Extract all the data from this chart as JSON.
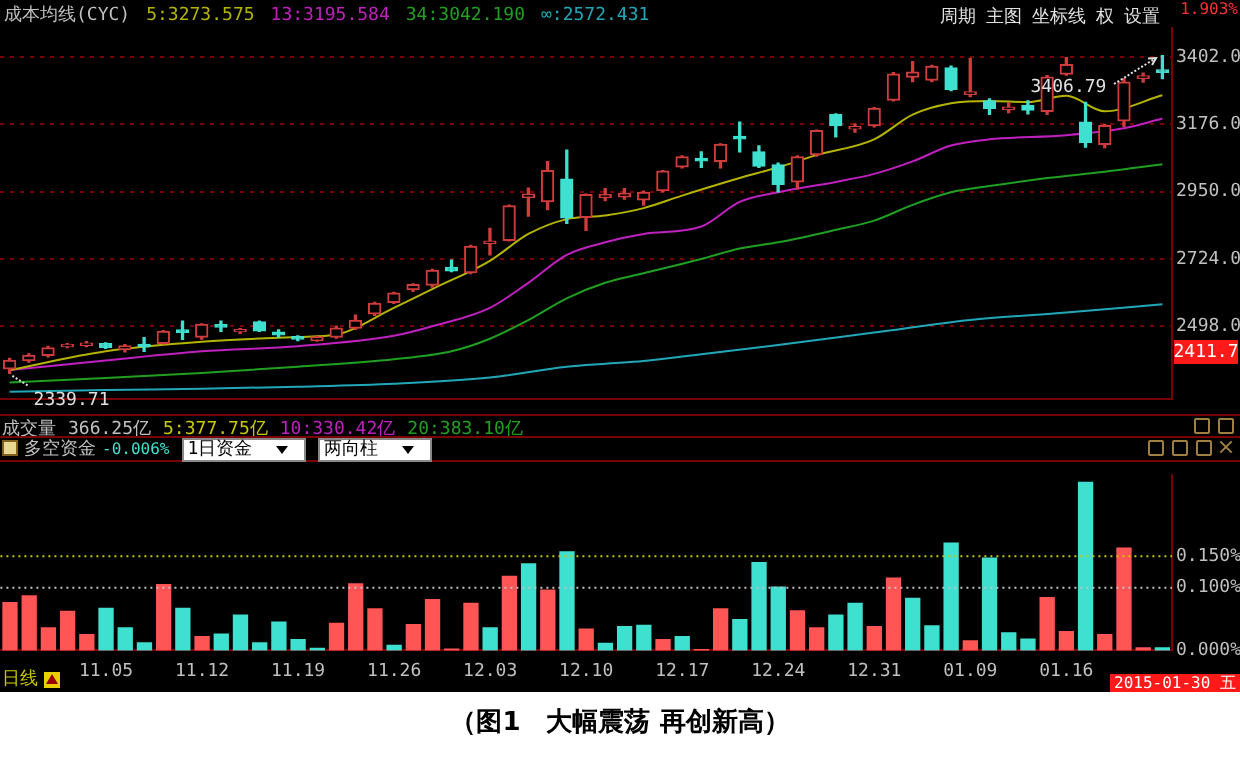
{
  "chart_data": [
    {
      "type": "candlestick",
      "title": "成本均线(CYC)",
      "legend": "top left",
      "tick_labels": "y",
      "grid": "y",
      "categories": [
        null,
        null,
        null,
        null,
        null,
        "11.05",
        null,
        null,
        null,
        null,
        "11.12",
        null,
        null,
        null,
        null,
        "11.19",
        null,
        null,
        null,
        null,
        "11.26",
        null,
        null,
        null,
        null,
        "12.03",
        null,
        null,
        null,
        null,
        "12.10",
        null,
        null,
        null,
        null,
        "12.17",
        null,
        null,
        null,
        null,
        "12.24",
        null,
        null,
        null,
        null,
        "12.31",
        null,
        null,
        null,
        null,
        "01.09",
        null,
        null,
        null,
        null,
        "01.16",
        null,
        null,
        null,
        null,
        null
      ],
      "ohlc": [
        [
          2355,
          2390,
          2339.71,
          2383
        ],
        [
          2383,
          2405,
          2378,
          2400
        ],
        [
          2400,
          2430,
          2395,
          2425
        ],
        [
          2430,
          2440,
          2426,
          2437
        ],
        [
          2434,
          2446,
          2430,
          2441
        ],
        [
          2440,
          2442,
          2424,
          2427
        ],
        [
          2420,
          2436,
          2412,
          2432
        ],
        [
          2437,
          2460,
          2414,
          2429
        ],
        [
          2441,
          2483,
          2439,
          2481
        ],
        [
          2486,
          2515,
          2454,
          2478
        ],
        [
          2462,
          2506,
          2455,
          2504
        ],
        [
          2503,
          2515,
          2481,
          2495
        ],
        [
          2480,
          2490,
          2474,
          2487
        ],
        [
          2513,
          2515,
          2481,
          2483
        ],
        [
          2478,
          2486,
          2462,
          2469
        ],
        [
          2463,
          2466,
          2450,
          2455
        ],
        [
          2450,
          2464,
          2448,
          2462
        ],
        [
          2462,
          2498,
          2458,
          2492
        ],
        [
          2492,
          2535,
          2488,
          2518
        ],
        [
          2540,
          2578,
          2535,
          2575
        ],
        [
          2578,
          2612,
          2575,
          2609
        ],
        [
          2621,
          2640,
          2615,
          2638
        ],
        [
          2636,
          2689,
          2630,
          2686
        ],
        [
          2696,
          2720,
          2682,
          2684
        ],
        [
          2678,
          2770,
          2675,
          2766
        ],
        [
          2776,
          2827,
          2738,
          2784
        ],
        [
          2787,
          2905,
          2785,
          2902
        ],
        [
          2931,
          2962,
          2868,
          2942
        ],
        [
          2917,
          3051,
          2890,
          3021
        ],
        [
          2992,
          3090,
          2844,
          2862
        ],
        [
          2864,
          2942,
          2820,
          2940
        ],
        [
          2930,
          2960,
          2920,
          2940
        ],
        [
          2933,
          2960,
          2925,
          2944
        ],
        [
          2923,
          2952,
          2905,
          2948
        ],
        [
          2954,
          3021,
          2950,
          3019
        ],
        [
          3034,
          3070,
          3030,
          3067
        ],
        [
          3062,
          3084,
          3032,
          3054
        ],
        [
          3052,
          3111,
          3030,
          3109
        ],
        [
          3136,
          3184,
          3084,
          3128
        ],
        [
          3084,
          3104,
          3032,
          3036
        ],
        [
          3040,
          3046,
          2950,
          2975
        ],
        [
          2983,
          3070,
          2960,
          3067
        ],
        [
          3075,
          3157,
          3070,
          3155
        ],
        [
          3209,
          3211,
          3134,
          3172
        ],
        [
          3161,
          3178,
          3150,
          3169
        ],
        [
          3172,
          3232,
          3168,
          3230
        ],
        [
          3258,
          3350,
          3255,
          3345
        ],
        [
          3335,
          3387,
          3320,
          3352
        ],
        [
          3325,
          3374,
          3320,
          3371
        ],
        [
          3366,
          3372,
          3290,
          3293
        ],
        [
          3277,
          3398,
          3270,
          3285
        ],
        [
          3255,
          3262,
          3210,
          3230
        ],
        [
          3226,
          3248,
          3216,
          3234
        ],
        [
          3240,
          3255,
          3212,
          3224
        ],
        [
          3220,
          3340,
          3210,
          3335
        ],
        [
          3345,
          3400,
          3342,
          3377
        ],
        [
          3184,
          3250,
          3100,
          3115
        ],
        [
          3109,
          3176,
          3098,
          3172
        ],
        [
          3188,
          3330,
          3170,
          3318
        ],
        [
          3331,
          3348,
          3318,
          3339
        ],
        [
          3359,
          3406.79,
          3330,
          3351
        ]
      ],
      "colors": [
        "#d03c3c",
        "#d03c3c",
        "#d03c3c",
        "#d03c3c",
        "#d03c3c",
        "#40e0d0",
        "#d03c3c",
        "#40e0d0",
        "#d03c3c",
        "#40e0d0",
        "#d03c3c",
        "#40e0d0",
        "#d03c3c",
        "#40e0d0",
        "#40e0d0",
        "#40e0d0",
        "#d03c3c",
        "#d03c3c",
        "#d03c3c",
        "#d03c3c",
        "#d03c3c",
        "#d03c3c",
        "#d03c3c",
        "#40e0d0",
        "#d03c3c",
        "#d03c3c",
        "#d03c3c",
        "#d03c3c",
        "#d03c3c",
        "#40e0d0",
        "#d03c3c",
        "#d03c3c",
        "#d03c3c",
        "#d03c3c",
        "#d03c3c",
        "#d03c3c",
        "#40e0d0",
        "#d03c3c",
        "#40e0d0",
        "#40e0d0",
        "#40e0d0",
        "#d03c3c",
        "#d03c3c",
        "#40e0d0",
        "#d03c3c",
        "#d03c3c",
        "#d03c3c",
        "#d03c3c",
        "#d03c3c",
        "#40e0d0",
        "#d03c3c",
        "#40e0d0",
        "#d03c3c",
        "#40e0d0",
        "#d03c3c",
        "#d03c3c",
        "#40e0d0",
        "#d03c3c",
        "#d03c3c",
        "#d03c3c",
        "#40e0d0"
      ],
      "series": [
        {
          "name": "5:3273.575",
          "type": "line",
          "color": "#b4b400",
          "values": [
            2351,
            null,
            null,
            null,
            null,
            2414,
            null,
            null,
            null,
            null,
            2446,
            null,
            null,
            null,
            null,
            2462,
            null,
            2470,
            null,
            null,
            2560,
            null,
            2623,
            null,
            null,
            2718,
            null,
            2808,
            null,
            2858,
            null,
            2870,
            null,
            2895,
            null,
            2937,
            null,
            null,
            2996,
            null,
            3032,
            null,
            3073,
            null,
            null,
            3126,
            null,
            3209,
            null,
            3247,
            null,
            3255,
            null,
            3251,
            null,
            3272,
            null,
            3220,
            null,
            null,
            3274
          ]
        },
        {
          "name": "13:3195.584",
          "type": "line",
          "color": "#c020c0",
          "values": [
            2351,
            null,
            null,
            null,
            null,
            2383,
            null,
            null,
            null,
            null,
            2414,
            null,
            null,
            null,
            null,
            2431,
            null,
            null,
            null,
            null,
            2466,
            null,
            2498,
            null,
            null,
            2560,
            null,
            2644,
            null,
            2738,
            null,
            2780,
            null,
            2808,
            null,
            null,
            2833,
            null,
            2916,
            null,
            2948,
            null,
            null,
            2983,
            null,
            3010,
            null,
            3052,
            null,
            3105,
            null,
            3126,
            null,
            null,
            null,
            3140,
            null,
            null,
            3163,
            null,
            3196
          ]
        },
        {
          "name": "34:3042.190",
          "type": "line",
          "color": "#20a020",
          "values": [
            2309,
            null,
            null,
            null,
            null,
            2324,
            null,
            null,
            null,
            null,
            2341,
            null,
            null,
            null,
            null,
            2362,
            null,
            null,
            null,
            null,
            2387,
            null,
            null,
            2414,
            null,
            2456,
            null,
            2519,
            null,
            2592,
            null,
            2644,
            null,
            2676,
            null,
            null,
            2724,
            null,
            2759,
            null,
            2780,
            null,
            null,
            2822,
            null,
            2853,
            null,
            2906,
            null,
            2948,
            null,
            2969,
            null,
            null,
            2996,
            null,
            null,
            3017,
            null,
            null,
            3042
          ]
        },
        {
          "name": "∞:2572.431",
          "type": "line",
          "color": "#20a8b8",
          "values": [
            2278,
            null,
            null,
            null,
            null,
            2284,
            null,
            null,
            null,
            null,
            2288,
            null,
            null,
            null,
            null,
            2295,
            null,
            null,
            null,
            null,
            2305,
            null,
            null,
            null,
            null,
            2326,
            null,
            null,
            null,
            2362,
            null,
            2372,
            null,
            2381,
            null,
            null,
            2404,
            null,
            null,
            null,
            2435,
            null,
            null,
            null,
            null,
            2477,
            null,
            null,
            null,
            null,
            2519,
            null,
            null,
            null,
            null,
            2544,
            null,
            null,
            null,
            null,
            2572
          ]
        }
      ],
      "ylim": [
        2253,
        3500
      ],
      "yticks": [
        {
          "value": 2498,
          "label": "2498.0"
        },
        {
          "value": 2724,
          "label": "2724.0"
        },
        {
          "value": 2950,
          "label": "2950.0"
        },
        {
          "value": 3176,
          "label": "3176.0"
        },
        {
          "value": 3402,
          "label": "3402.0"
        }
      ],
      "annotations": [
        "周期",
        "主图",
        "坐标线",
        "权",
        "设置",
        "1.903%",
        "3406.79",
        {
          "text": "2339.71",
          "y": 2339.71
        },
        {
          "text": "2411.7",
          "y": 2411.7
        }
      ]
    },
    {
      "type": "bar",
      "title": "多空资金",
      "categories": [
        null,
        null,
        null,
        null,
        null,
        "11.05",
        null,
        null,
        null,
        null,
        "11.12",
        null,
        null,
        null,
        null,
        "11.19",
        null,
        null,
        null,
        null,
        "11.26",
        null,
        null,
        null,
        null,
        "12.03",
        null,
        null,
        null,
        null,
        "12.10",
        null,
        null,
        null,
        null,
        "12.17",
        null,
        null,
        null,
        null,
        "12.24",
        null,
        null,
        null,
        null,
        "12.31",
        null,
        null,
        null,
        null,
        "01.09",
        null,
        null,
        null,
        null,
        "01.16",
        null,
        null,
        null,
        null,
        null
      ],
      "values": [
        0.076,
        0.087,
        0.036,
        0.062,
        0.025,
        0.067,
        0.036,
        0.012,
        0.105,
        0.067,
        0.022,
        0.026,
        0.056,
        0.012,
        0.045,
        0.017,
        0.003,
        0.043,
        0.106,
        0.066,
        0.008,
        0.041,
        0.081,
        0.002,
        0.075,
        0.036,
        0.118,
        0.138,
        0.096,
        0.157,
        0.034,
        0.011,
        0.038,
        0.04,
        0.017,
        0.022,
        0.001,
        0.066,
        0.049,
        0.14,
        0.101,
        0.063,
        0.036,
        0.056,
        0.075,
        0.038,
        0.115,
        0.083,
        0.039,
        0.171,
        0.015,
        0.147,
        0.028,
        0.018,
        0.084,
        0.03,
        0.268,
        0.025,
        0.163,
        0.004,
        0.004
      ],
      "colors": [
        "#ff5555",
        "#ff5555",
        "#ff5555",
        "#ff5555",
        "#ff5555",
        "#40e0d0",
        "#40e0d0",
        "#40e0d0",
        "#ff5555",
        "#40e0d0",
        "#ff5555",
        "#40e0d0",
        "#40e0d0",
        "#40e0d0",
        "#40e0d0",
        "#40e0d0",
        "#40e0d0",
        "#ff5555",
        "#ff5555",
        "#ff5555",
        "#40e0d0",
        "#ff5555",
        "#ff5555",
        "#ff5555",
        "#ff5555",
        "#40e0d0",
        "#ff5555",
        "#40e0d0",
        "#ff5555",
        "#40e0d0",
        "#ff5555",
        "#40e0d0",
        "#40e0d0",
        "#40e0d0",
        "#ff5555",
        "#40e0d0",
        "#ff5555",
        "#ff5555",
        "#40e0d0",
        "#40e0d0",
        "#40e0d0",
        "#ff5555",
        "#ff5555",
        "#40e0d0",
        "#40e0d0",
        "#ff5555",
        "#ff5555",
        "#40e0d0",
        "#40e0d0",
        "#40e0d0",
        "#ff5555",
        "#40e0d0",
        "#40e0d0",
        "#40e0d0",
        "#ff5555",
        "#ff5555",
        "#40e0d0",
        "#ff5555",
        "#ff5555",
        "#ff5555",
        "#40e0d0"
      ],
      "ylim": [
        0,
        0.28
      ],
      "yticks": [
        {
          "value": 0,
          "label": "0.000%"
        },
        {
          "value": 0.1,
          "label": "0.100%"
        },
        {
          "value": 0.15,
          "label": "0.150%"
        }
      ],
      "ref_lines": [
        {
          "axis": "y",
          "value": 0.15,
          "color": "#c8c800",
          "line_style": "dotted"
        },
        {
          "axis": "y",
          "value": 0.1,
          "color": "#c0c0c0",
          "line_style": "dotted"
        }
      ],
      "annotations": [
        "成交量",
        "366.25亿",
        "5:377.75亿",
        "10:330.42亿",
        "20:383.10亿",
        "-0.006%",
        "1日资金",
        "两向柱",
        "日线",
        "2015-01-30 五",
        "（图1　大幅震荡 再创新高）"
      ]
    }
  ]
}
